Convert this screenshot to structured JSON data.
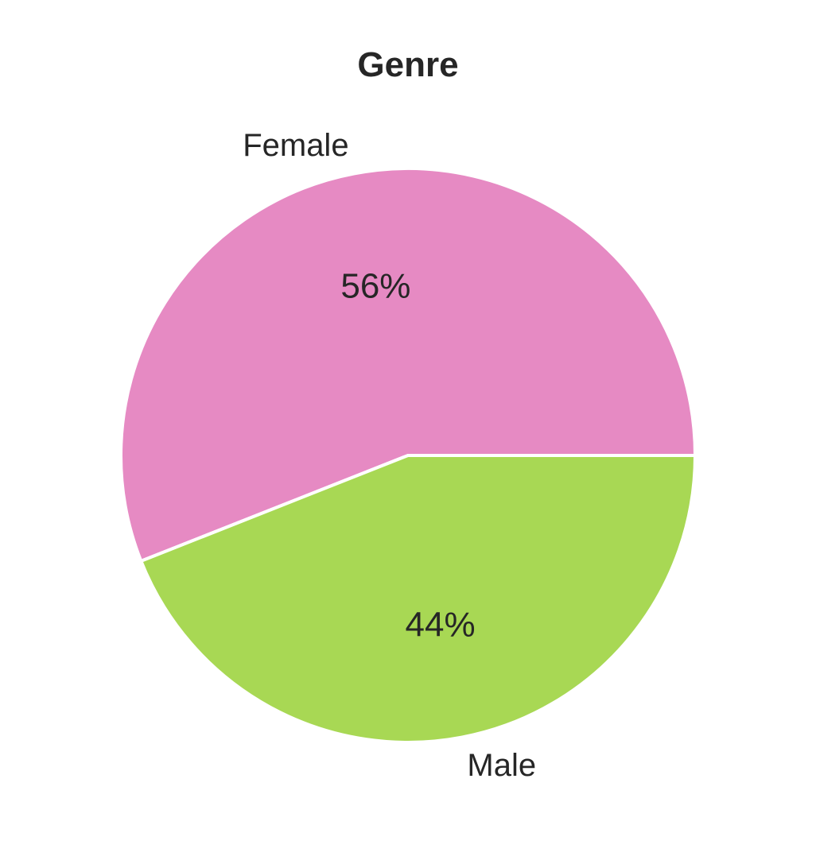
{
  "chart_data": {
    "type": "pie",
    "title": "Genre",
    "categories": [
      "Female",
      "Male"
    ],
    "values": [
      56,
      44
    ],
    "percent_labels": [
      "56%",
      "44%"
    ],
    "colors": [
      "#e68ac3",
      "#a8d854"
    ],
    "edge_color": "#ffffff",
    "start_angle_deg": 0,
    "direction": "counterclockwise",
    "legend": "none"
  }
}
